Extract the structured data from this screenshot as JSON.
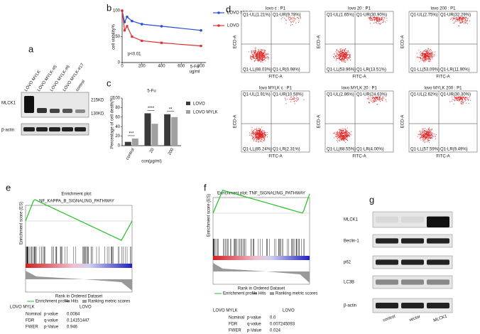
{
  "panel_labels": [
    "a",
    "b",
    "c",
    "d",
    "e",
    "f",
    "g"
  ],
  "a": {
    "lanes": [
      "LOVO MYLK",
      "LOVO MYLK-#5",
      "LOVO MYLK-#6",
      "LOVO MYLK-#17",
      "control"
    ],
    "rows": [
      "MLCK1",
      "β-actin"
    ],
    "sizes": [
      "215KD",
      "130KD"
    ]
  },
  "chart_data": [
    {
      "type": "line",
      "x_label": "5-Fu",
      "x_unit": "ug/ml",
      "y_label": "cell viability%",
      "annotation": "p<0.01",
      "x": [
        0,
        25,
        50,
        100,
        200,
        400,
        800
      ],
      "series": [
        {
          "name": "LOVO MYLK",
          "color": "#2b4fd8",
          "values": [
            100,
            78,
            88,
            80,
            74,
            70,
            62
          ]
        },
        {
          "name": "LOVO",
          "color": "#e03030",
          "values": [
            100,
            62,
            70,
            50,
            42,
            38,
            32
          ]
        }
      ],
      "xlim": [
        0,
        850
      ],
      "ylim": [
        0,
        100
      ],
      "xticks": [
        0,
        200,
        400,
        600,
        800
      ],
      "yticks": [
        0,
        50,
        100
      ],
      "legend": "right"
    },
    {
      "type": "bar",
      "title": "5-Fu",
      "categories": [
        "control",
        "20",
        "200"
      ],
      "x_label": "con(μg/ml)",
      "y_label": "Percentage of cell death(%)",
      "series": [
        {
          "name": "LOVO",
          "color": "#3a3a3a",
          "values": [
            8,
            68,
            66
          ]
        },
        {
          "name": "LOVO MYLK",
          "color": "#a0a0a0",
          "values": [
            15,
            46,
            60
          ]
        }
      ],
      "significance": [
        "***",
        "****",
        "**"
      ],
      "ylim": [
        0,
        100
      ],
      "yticks": [
        0,
        20,
        40,
        60,
        80,
        100
      ],
      "legend": "right"
    }
  ],
  "d": {
    "x_label": "FITC-A",
    "y_label": "ECD-A",
    "plots": [
      {
        "title": "lovo c : P1",
        "ul": "Q1-UL(1.21%)",
        "ur": "Q1-UR(9.78%)",
        "ll": "Q1-LL(88.03%)",
        "lr": "Q1-LR(0.98%)"
      },
      {
        "title": "lovo 20 : P1",
        "ul": "Q1-UL(1.65%)",
        "ur": "Q1-UR(30.90%)",
        "ll": "Q1-LL(53.96%)",
        "lr": "Q1-LR(13.51%)"
      },
      {
        "title": "lovo 200 : P1",
        "ul": "Q1-UL(2.75%)",
        "ur": "Q1-UR(32.29%)",
        "ll": "Q1-LL(53.09%)",
        "lr": "Q1-LR(11.90%)"
      },
      {
        "title": "lovo MYLK c : P1",
        "ul": "Q1-UL(1.91%)",
        "ur": "Q1-UR(10.58%)",
        "ll": "Q1-LL(85.24%)",
        "lr": "Q1-LR(2.31%)"
      },
      {
        "title": "lovo MYLK 20 : P1",
        "ul": "Q1-UL(2.86%)",
        "ur": "Q1-UR(24.63%)",
        "ll": "Q1-LL(68.55%)",
        "lr": "Q1-LR(4.00%)"
      },
      {
        "title": "lovo MYLK 200 : P1",
        "ul": "Q1-UL(2.62%)",
        "ur": "Q1-UR(30.30%)",
        "ll": "Q1-LL(57.59%)",
        "lr": "Q1-LR(9.49%)"
      }
    ]
  },
  "e": {
    "title_prefix": "Enrichment plot:",
    "title": "NF_KAPPA_B_SIGNALING_PATHWAY",
    "y_label": "Enrichment score (ES)",
    "x_label": "Rank in Ordered Dataset",
    "legend": [
      "Enrichment profile",
      "Hits",
      "Ranking metric scores"
    ],
    "groups": [
      "LOVO MYLK",
      "LOVO"
    ],
    "stats": [
      [
        "Nominal",
        "p-value",
        "0.0084"
      ],
      [
        "FDR",
        "q-value",
        "0.14151447"
      ],
      [
        "FWER",
        "p-Value",
        "0.946"
      ]
    ]
  },
  "f": {
    "title": "Enrichment plot: TNF_SIGNALING_PATHWAY",
    "y_label": "Enrichment score (ES)",
    "x_label": "Rank in Ordered Dataset",
    "legend": [
      "Enrichment profile",
      "Hits",
      "Ranking metric scores"
    ],
    "groups": [
      "LOVO MYLK",
      "LOVO"
    ],
    "stats": [
      [
        "Nominal",
        "p-value",
        "0.0"
      ],
      [
        "FDR",
        "q-value",
        "0.007245093"
      ],
      [
        "FWER",
        "p-Value",
        "0.024"
      ]
    ]
  },
  "g": {
    "rows": [
      "MLCK1",
      "Beclin-1",
      "p62",
      "LC3B",
      "β-actin"
    ],
    "lanes": [
      "control",
      "vector",
      "MLCK1"
    ]
  }
}
